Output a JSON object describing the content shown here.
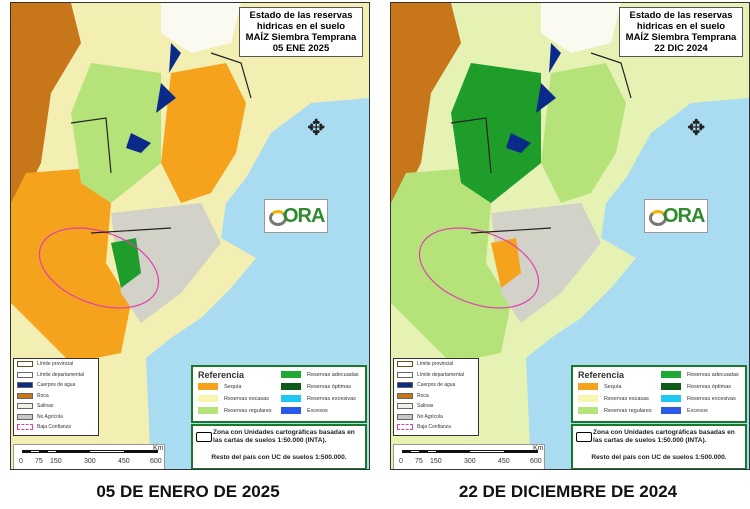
{
  "panels": [
    {
      "title_lines": [
        "Estado de las reservas",
        "hidricas en el suelo",
        "MAÍZ Siembra Temprana",
        "05 ENE 2025"
      ],
      "caption": "05 DE ENERO DE 2025",
      "map_colors": {
        "base": "#f3efb2",
        "dominant": "#f5a21c",
        "secondary": "#b5e37a",
        "accent": "#1f9d2a"
      }
    },
    {
      "title_lines": [
        "Estado de las reservas",
        "hidricas en el suelo",
        "MAÍZ Siembra Temprana",
        "22 DIC 2024"
      ],
      "caption": "22 DE DICIEMBRE DE 2024",
      "map_colors": {
        "base": "#e6f2b4",
        "dominant": "#b5e37a",
        "secondary": "#1f9d2a",
        "accent": "#f5a21c"
      }
    }
  ],
  "logo": "ORA",
  "legend": [
    {
      "label": "Límite provincial",
      "color": "#ffffff"
    },
    {
      "label": "Límite departamental",
      "color": "#ffffff"
    },
    {
      "label": "Cuerpos de agua",
      "color": "#0a2a8a"
    },
    {
      "label": "Roca",
      "color": "#c8761a"
    },
    {
      "label": "Salinas",
      "color": "#f2f2ea"
    },
    {
      "label": "No Agrícola",
      "color": "#c8c8c8"
    },
    {
      "label": "Baja Confianza",
      "color": "#ffffff"
    }
  ],
  "reference": {
    "title": "Referencia",
    "items": [
      {
        "label": "Sequía",
        "color": "#f5a21c"
      },
      {
        "label": "Reservas escasas",
        "color": "#f7f5b0"
      },
      {
        "label": "Reservas regulares",
        "color": "#b5e37a"
      },
      {
        "label": "Reservas adecuadas",
        "color": "#1fa832"
      },
      {
        "label": "Reservas óptimas",
        "color": "#0f5a1a"
      },
      {
        "label": "Reservas excesivas",
        "color": "#1ec8f0"
      },
      {
        "label": "Excesos",
        "color": "#2a5ae8"
      }
    ]
  },
  "zone": {
    "line1": "Zona con Unidades cartográficas basadas en las cartas de suelos 1:50.000 (INTA).",
    "line2": "Resto del país con UC de suelos 1:500.000."
  },
  "scale": {
    "unit": "Km",
    "ticks": [
      "0",
      "75",
      "150",
      "300",
      "450",
      "600"
    ]
  }
}
